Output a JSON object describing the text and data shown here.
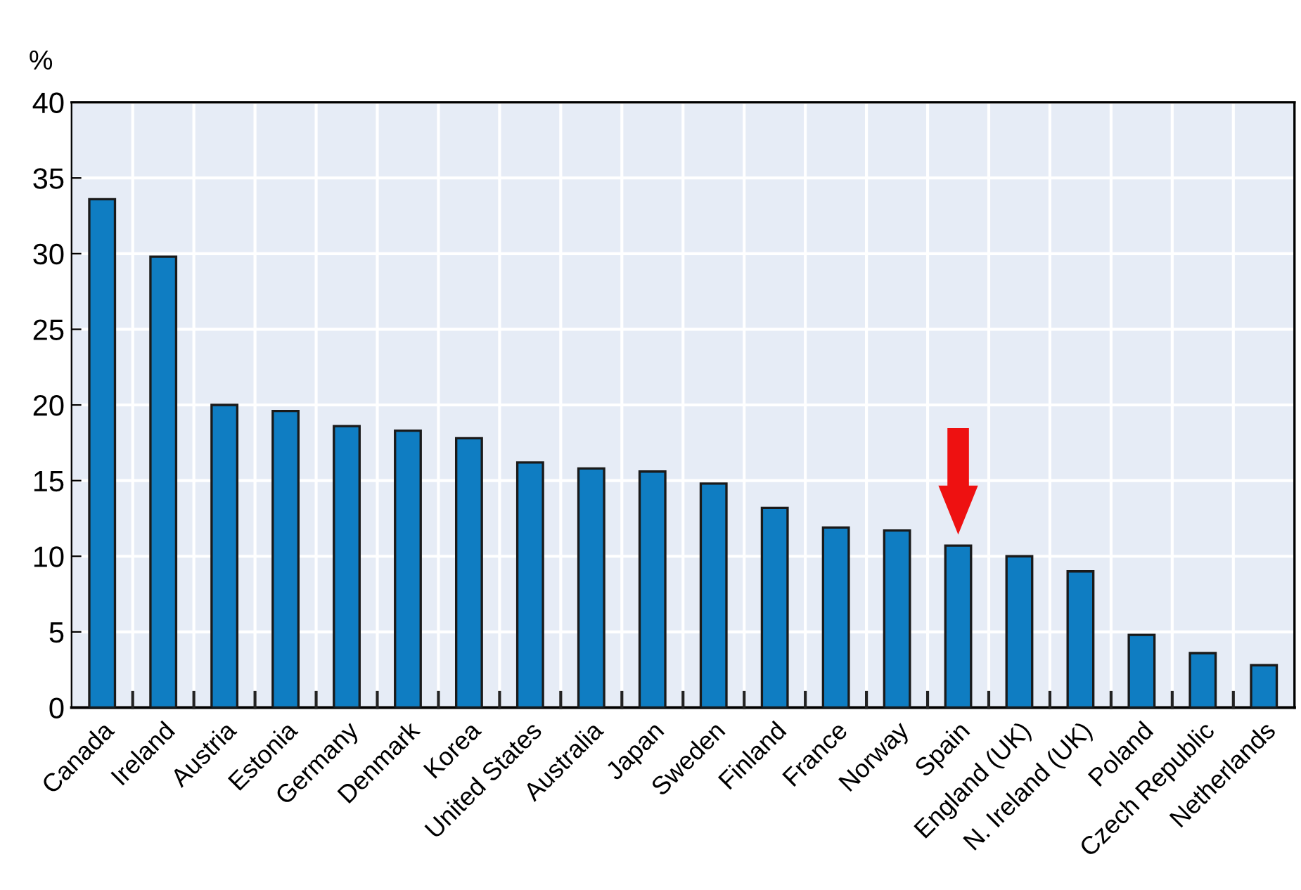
{
  "chart_data": {
    "type": "bar",
    "ylabel": "%",
    "categories": [
      "Canada",
      "Ireland",
      "Austria",
      "Estonia",
      "Germany",
      "Denmark",
      "Korea",
      "United States",
      "Australia",
      "Japan",
      "Sweden",
      "Finland",
      "France",
      "Norway",
      "Spain",
      "England (UK)",
      "N. Ireland (UK)",
      "Poland",
      "Czech Republic",
      "Netherlands"
    ],
    "values": [
      33.6,
      29.8,
      20.0,
      19.6,
      18.6,
      18.3,
      17.8,
      16.2,
      15.8,
      15.6,
      14.8,
      13.2,
      11.9,
      11.7,
      10.7,
      10.0,
      9.0,
      4.8,
      3.6,
      2.8
    ],
    "color": "#0f7dc2",
    "ylim": [
      0,
      40
    ],
    "yticks": [
      0,
      5,
      10,
      15,
      20,
      25,
      30,
      35,
      40
    ],
    "grid": true,
    "legend": false
  }
}
